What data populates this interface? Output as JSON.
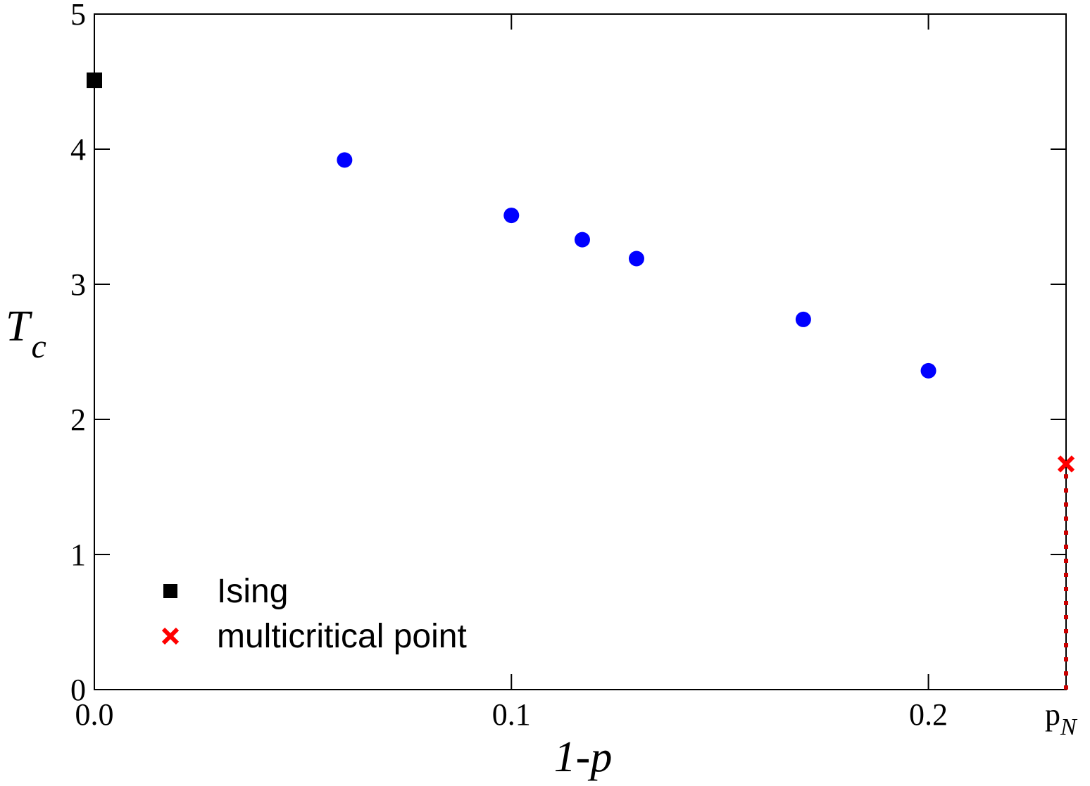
{
  "chart_data": {
    "type": "scatter",
    "xlabel": "1-p",
    "ylabel_main": "T",
    "ylabel_sub": "c",
    "xlim": [
      0.0,
      0.232
    ],
    "ylim": [
      0,
      5
    ],
    "x_ticks": [
      {
        "value": 0.0,
        "label": "0.0"
      },
      {
        "value": 0.1,
        "label": "0.1"
      },
      {
        "value": 0.2,
        "label": "0.2"
      }
    ],
    "x_special_tick": {
      "value": 0.233,
      "label_main": "p",
      "label_sub": "N"
    },
    "y_ticks": [
      {
        "value": 0,
        "label": "0"
      },
      {
        "value": 1,
        "label": "1"
      },
      {
        "value": 2,
        "label": "2"
      },
      {
        "value": 3,
        "label": "3"
      },
      {
        "value": 4,
        "label": "4"
      },
      {
        "value": 5,
        "label": "5"
      }
    ],
    "series": [
      {
        "name": "Ising",
        "marker": "square",
        "color": "#000000",
        "points": [
          [
            0.0,
            4.51
          ]
        ]
      },
      {
        "marker": "circle",
        "color": "#0000ff",
        "points": [
          [
            0.06,
            3.92
          ],
          [
            0.1,
            3.51
          ],
          [
            0.117,
            3.33
          ],
          [
            0.13,
            3.19
          ],
          [
            0.17,
            2.74
          ],
          [
            0.2,
            2.36
          ]
        ]
      },
      {
        "name": "multicritical point",
        "marker": "x",
        "color": "#ff0000",
        "points": [
          [
            0.233,
            1.67
          ]
        ]
      }
    ],
    "dotted_line": {
      "x": 0.233,
      "y_from": 0,
      "y_to": 1.67,
      "color": "#cc0000"
    },
    "legend": {
      "position": "bottom-left",
      "entries": [
        {
          "label": "Ising",
          "marker": "square",
          "color": "#000000"
        },
        {
          "label": "multicritical point",
          "marker": "x",
          "color": "#ff0000"
        }
      ]
    },
    "grid": false
  }
}
